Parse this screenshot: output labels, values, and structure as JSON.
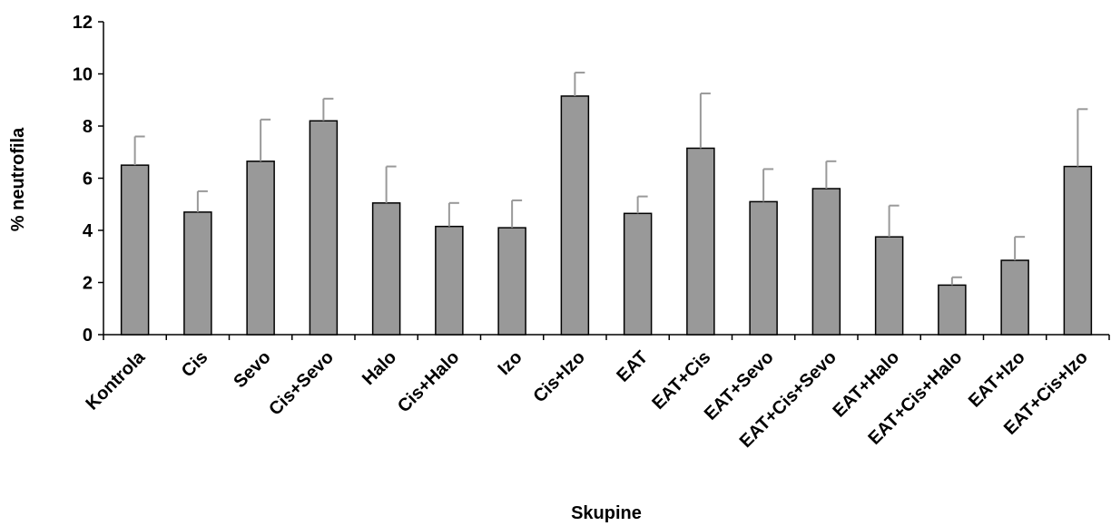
{
  "chart_data": {
    "type": "bar",
    "title": "",
    "xlabel": "Skupine",
    "ylabel": "% neutrofila",
    "ylim": [
      0,
      12
    ],
    "yticks": [
      "0",
      "2",
      "4",
      "6",
      "8",
      "10",
      "12"
    ],
    "grid": false,
    "categories": [
      "Kontrola",
      "Cis",
      "Sevo",
      "Cis+Sevo",
      "Halo",
      "Cis+Halo",
      "Izo",
      "Cis+Izo",
      "EAT",
      "EAT+Cis",
      "EAT+Sevo",
      "EAT+Cis+Sevo",
      "EAT+Halo",
      "EAT+Cis+Halo",
      "EAT+Izo",
      "EAT+Cis+Izo"
    ],
    "values": [
      6.5,
      4.7,
      6.65,
      8.2,
      5.05,
      4.15,
      4.1,
      9.15,
      4.65,
      7.15,
      5.1,
      5.6,
      3.75,
      1.9,
      2.85,
      6.45
    ],
    "errors": [
      1.1,
      0.8,
      1.6,
      0.85,
      1.4,
      0.9,
      1.05,
      0.9,
      0.65,
      2.1,
      1.25,
      1.05,
      1.2,
      0.3,
      0.9,
      2.2
    ],
    "colors": {
      "bar": "#999999",
      "bar_stroke": "#000000",
      "error_bar": "#999999",
      "axis": "#000000"
    }
  }
}
